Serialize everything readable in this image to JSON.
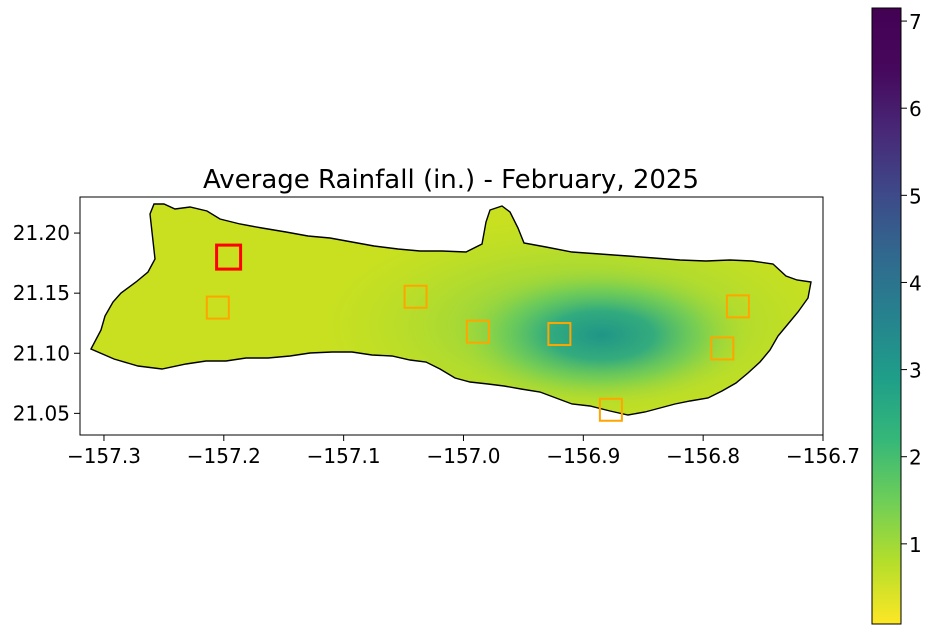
{
  "title": "Average Rainfall (in.) - February, 2025",
  "map": {
    "lon_range": [
      -157.32,
      -156.7
    ],
    "lat_range": [
      21.032,
      21.23
    ],
    "x_ticks": [
      {
        "value": -157.3,
        "label": "−157.3"
      },
      {
        "value": -157.2,
        "label": "−157.2"
      },
      {
        "value": -157.1,
        "label": "−157.1"
      },
      {
        "value": -157.0,
        "label": "−157.0"
      },
      {
        "value": -156.9,
        "label": "−156.9"
      },
      {
        "value": -156.8,
        "label": "−156.8"
      },
      {
        "value": -156.7,
        "label": "−156.7"
      }
    ],
    "y_ticks": [
      {
        "value": 21.2,
        "label": "21.20"
      },
      {
        "value": 21.15,
        "label": "21.15"
      },
      {
        "value": 21.1,
        "label": "21.10"
      },
      {
        "value": 21.05,
        "label": "21.05"
      }
    ],
    "stations": [
      {
        "lon": -157.196,
        "lat": 21.18,
        "selected": true
      },
      {
        "lon": -157.205,
        "lat": 21.138,
        "selected": false
      },
      {
        "lon": -157.04,
        "lat": 21.147,
        "selected": false
      },
      {
        "lon": -156.988,
        "lat": 21.118,
        "selected": false
      },
      {
        "lon": -156.92,
        "lat": 21.116,
        "selected": false
      },
      {
        "lon": -156.877,
        "lat": 21.053,
        "selected": false
      },
      {
        "lon": -156.784,
        "lat": 21.104,
        "selected": false
      },
      {
        "lon": -156.771,
        "lat": 21.139,
        "selected": false
      }
    ],
    "rainfall_peak": {
      "lon": -156.885,
      "lat": 21.115,
      "max_value": 3.4
    }
  },
  "colorbar": {
    "colormap": "viridis (reversed)",
    "range": [
      0.08,
      7.15
    ],
    "ticks": [
      {
        "value": 1,
        "label": "1"
      },
      {
        "value": 2,
        "label": "2"
      },
      {
        "value": 3,
        "label": "3"
      },
      {
        "value": 4,
        "label": "4"
      },
      {
        "value": 5,
        "label": "5"
      },
      {
        "value": 6,
        "label": "6"
      },
      {
        "value": 7,
        "label": "7"
      }
    ]
  },
  "colors": {
    "selected_station": "#ff0000",
    "station": "#ffa500",
    "coastline": "#000000"
  }
}
